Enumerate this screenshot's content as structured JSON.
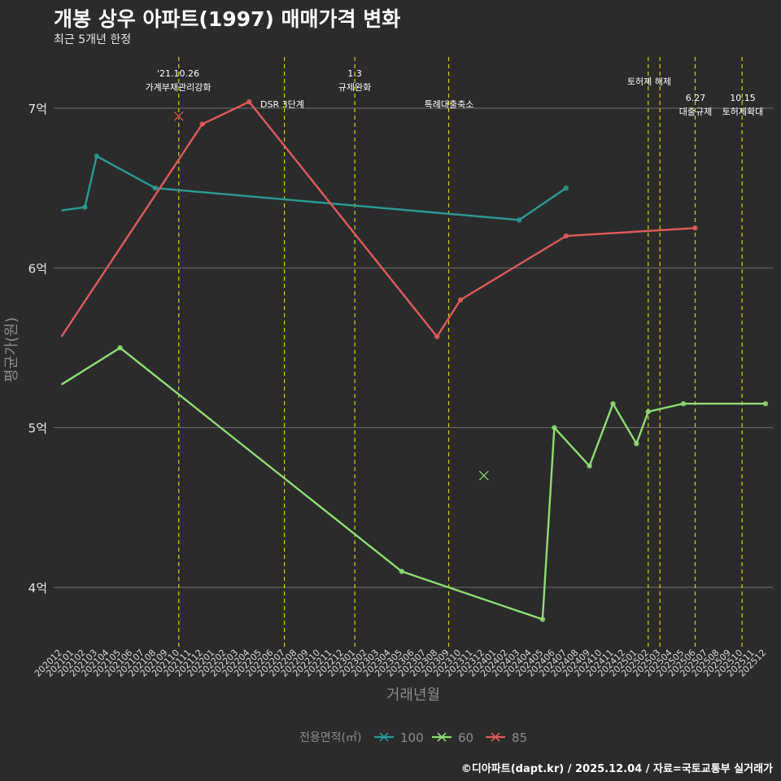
{
  "chart_data": {
    "type": "line",
    "title": "개봉 상우 아파트(1997) 매매가격 변화",
    "subtitle": "최근 5개년 한정",
    "xlabel": "거래년월",
    "ylabel": "평균가(원)",
    "legend_title": "전용면적(㎡)",
    "legend_position": "bottom",
    "caption": "©디아파트(dapt.kr) / 2025.12.04 / 자료=국토교통부 실거래가",
    "ylim": [
      3.68,
      7.5
    ],
    "yticks": [
      {
        "value": 4,
        "label": "4억"
      },
      {
        "value": 5,
        "label": "5억"
      },
      {
        "value": 6,
        "label": "6억"
      },
      {
        "value": 7,
        "label": "7억"
      }
    ],
    "x_categories": [
      "202012",
      "202101",
      "202102",
      "202103",
      "202104",
      "202105",
      "202106",
      "202107",
      "202108",
      "202109",
      "202110",
      "202111",
      "202112",
      "202201",
      "202202",
      "202203",
      "202204",
      "202205",
      "202206",
      "202207",
      "202208",
      "202209",
      "202210",
      "202211",
      "202212",
      "202301",
      "202302",
      "202303",
      "202304",
      "202305",
      "202306",
      "202307",
      "202308",
      "202309",
      "202310",
      "202311",
      "202312",
      "202401",
      "202402",
      "202403",
      "202404",
      "202405",
      "202406",
      "202407",
      "202408",
      "202409",
      "202410",
      "202411",
      "202412",
      "202501",
      "202502",
      "202503",
      "202504",
      "202505",
      "202506",
      "202507",
      "202508",
      "202509",
      "202510",
      "202511",
      "202512"
    ],
    "series": [
      {
        "name": "100",
        "color": "#2a9a98",
        "points": [
          [
            "202012",
            6.36
          ],
          [
            "202102",
            6.38
          ],
          [
            "202103",
            6.7
          ],
          [
            "202108",
            6.5
          ],
          [
            "202403",
            6.3
          ],
          [
            "202407",
            6.5
          ]
        ],
        "marker_points": [
          [
            "202102",
            6.38
          ],
          [
            "202103",
            6.7
          ],
          [
            "202108",
            6.5
          ],
          [
            "202403",
            6.3
          ],
          [
            "202407",
            6.5
          ]
        ],
        "x_markers": []
      },
      {
        "name": "60",
        "color": "#8fdc74",
        "points": [
          [
            "202012",
            5.27
          ],
          [
            "202105",
            5.5
          ],
          [
            "202305",
            4.1
          ],
          [
            "202405",
            3.8
          ],
          [
            "202406",
            5.0
          ],
          [
            "202409",
            4.76
          ],
          [
            "202411",
            5.15
          ],
          [
            "202501",
            4.9
          ],
          [
            "202502",
            5.1
          ],
          [
            "202505",
            5.15
          ],
          [
            "202512",
            5.15
          ]
        ],
        "marker_points": [
          [
            "202105",
            5.5
          ],
          [
            "202305",
            4.1
          ],
          [
            "202405",
            3.8
          ],
          [
            "202406",
            5.0
          ],
          [
            "202409",
            4.76
          ],
          [
            "202411",
            5.15
          ],
          [
            "202501",
            4.9
          ],
          [
            "202502",
            5.1
          ],
          [
            "202505",
            5.15
          ],
          [
            "202512",
            5.15
          ]
        ],
        "x_markers": [
          [
            "202312",
            4.7
          ]
        ]
      },
      {
        "name": "85",
        "color": "#e05a5a",
        "points": [
          [
            "202012",
            5.57
          ],
          [
            "202112",
            6.9
          ],
          [
            "202204",
            7.04
          ],
          [
            "202308",
            5.57
          ],
          [
            "202310",
            5.8
          ],
          [
            "202407",
            6.2
          ],
          [
            "202506",
            6.25
          ]
        ],
        "marker_points": [
          [
            "202112",
            6.9
          ],
          [
            "202204",
            7.04
          ],
          [
            "202308",
            5.57
          ],
          [
            "202310",
            5.8
          ],
          [
            "202407",
            6.2
          ],
          [
            "202506",
            6.25
          ]
        ],
        "x_markers": [
          [
            "202110",
            6.95
          ]
        ]
      }
    ],
    "events": [
      {
        "x": "202110",
        "lines": [
          "'21.10.26",
          "가계부채관리강화"
        ]
      },
      {
        "x": "202207",
        "lines": [
          "DSR 3단계"
        ]
      },
      {
        "x": "202301",
        "lines": [
          "1.3",
          "규제완화"
        ]
      },
      {
        "x": "202309",
        "lines": [
          "특례대출축소"
        ]
      },
      {
        "x": "202502",
        "lines": []
      },
      {
        "x": "202503",
        "lines": [
          "토허제 해제"
        ]
      },
      {
        "x": "202506",
        "lines": [
          "6.27",
          "대출규제"
        ]
      },
      {
        "x": "202510",
        "lines": [
          "10.15",
          "토허제확대"
        ]
      }
    ]
  }
}
